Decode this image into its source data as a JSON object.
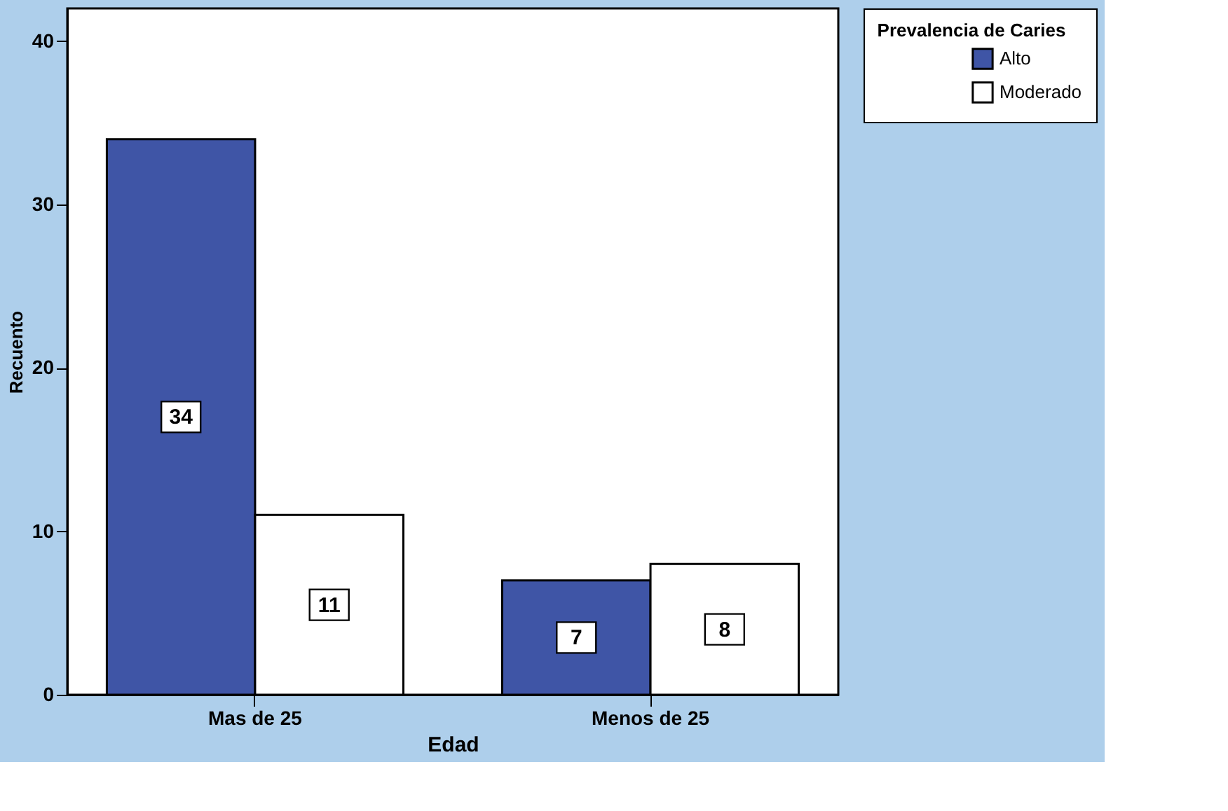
{
  "chart_data": {
    "type": "bar",
    "xlabel": "Edad",
    "ylabel": "Recuento",
    "legend_title": "Prevalencia de Caries",
    "categories": [
      "Mas de 25",
      "Menos de 25"
    ],
    "series": [
      {
        "name": "Alto",
        "color": "#3f55a6",
        "values": [
          34,
          7
        ]
      },
      {
        "name": "Moderado",
        "color": "#ffffff",
        "values": [
          11,
          8
        ]
      }
    ],
    "ylim": [
      0,
      42
    ],
    "yticks": [
      0,
      10,
      20,
      30,
      40
    ],
    "grid": false,
    "legend": "top right",
    "data_labels": true
  }
}
